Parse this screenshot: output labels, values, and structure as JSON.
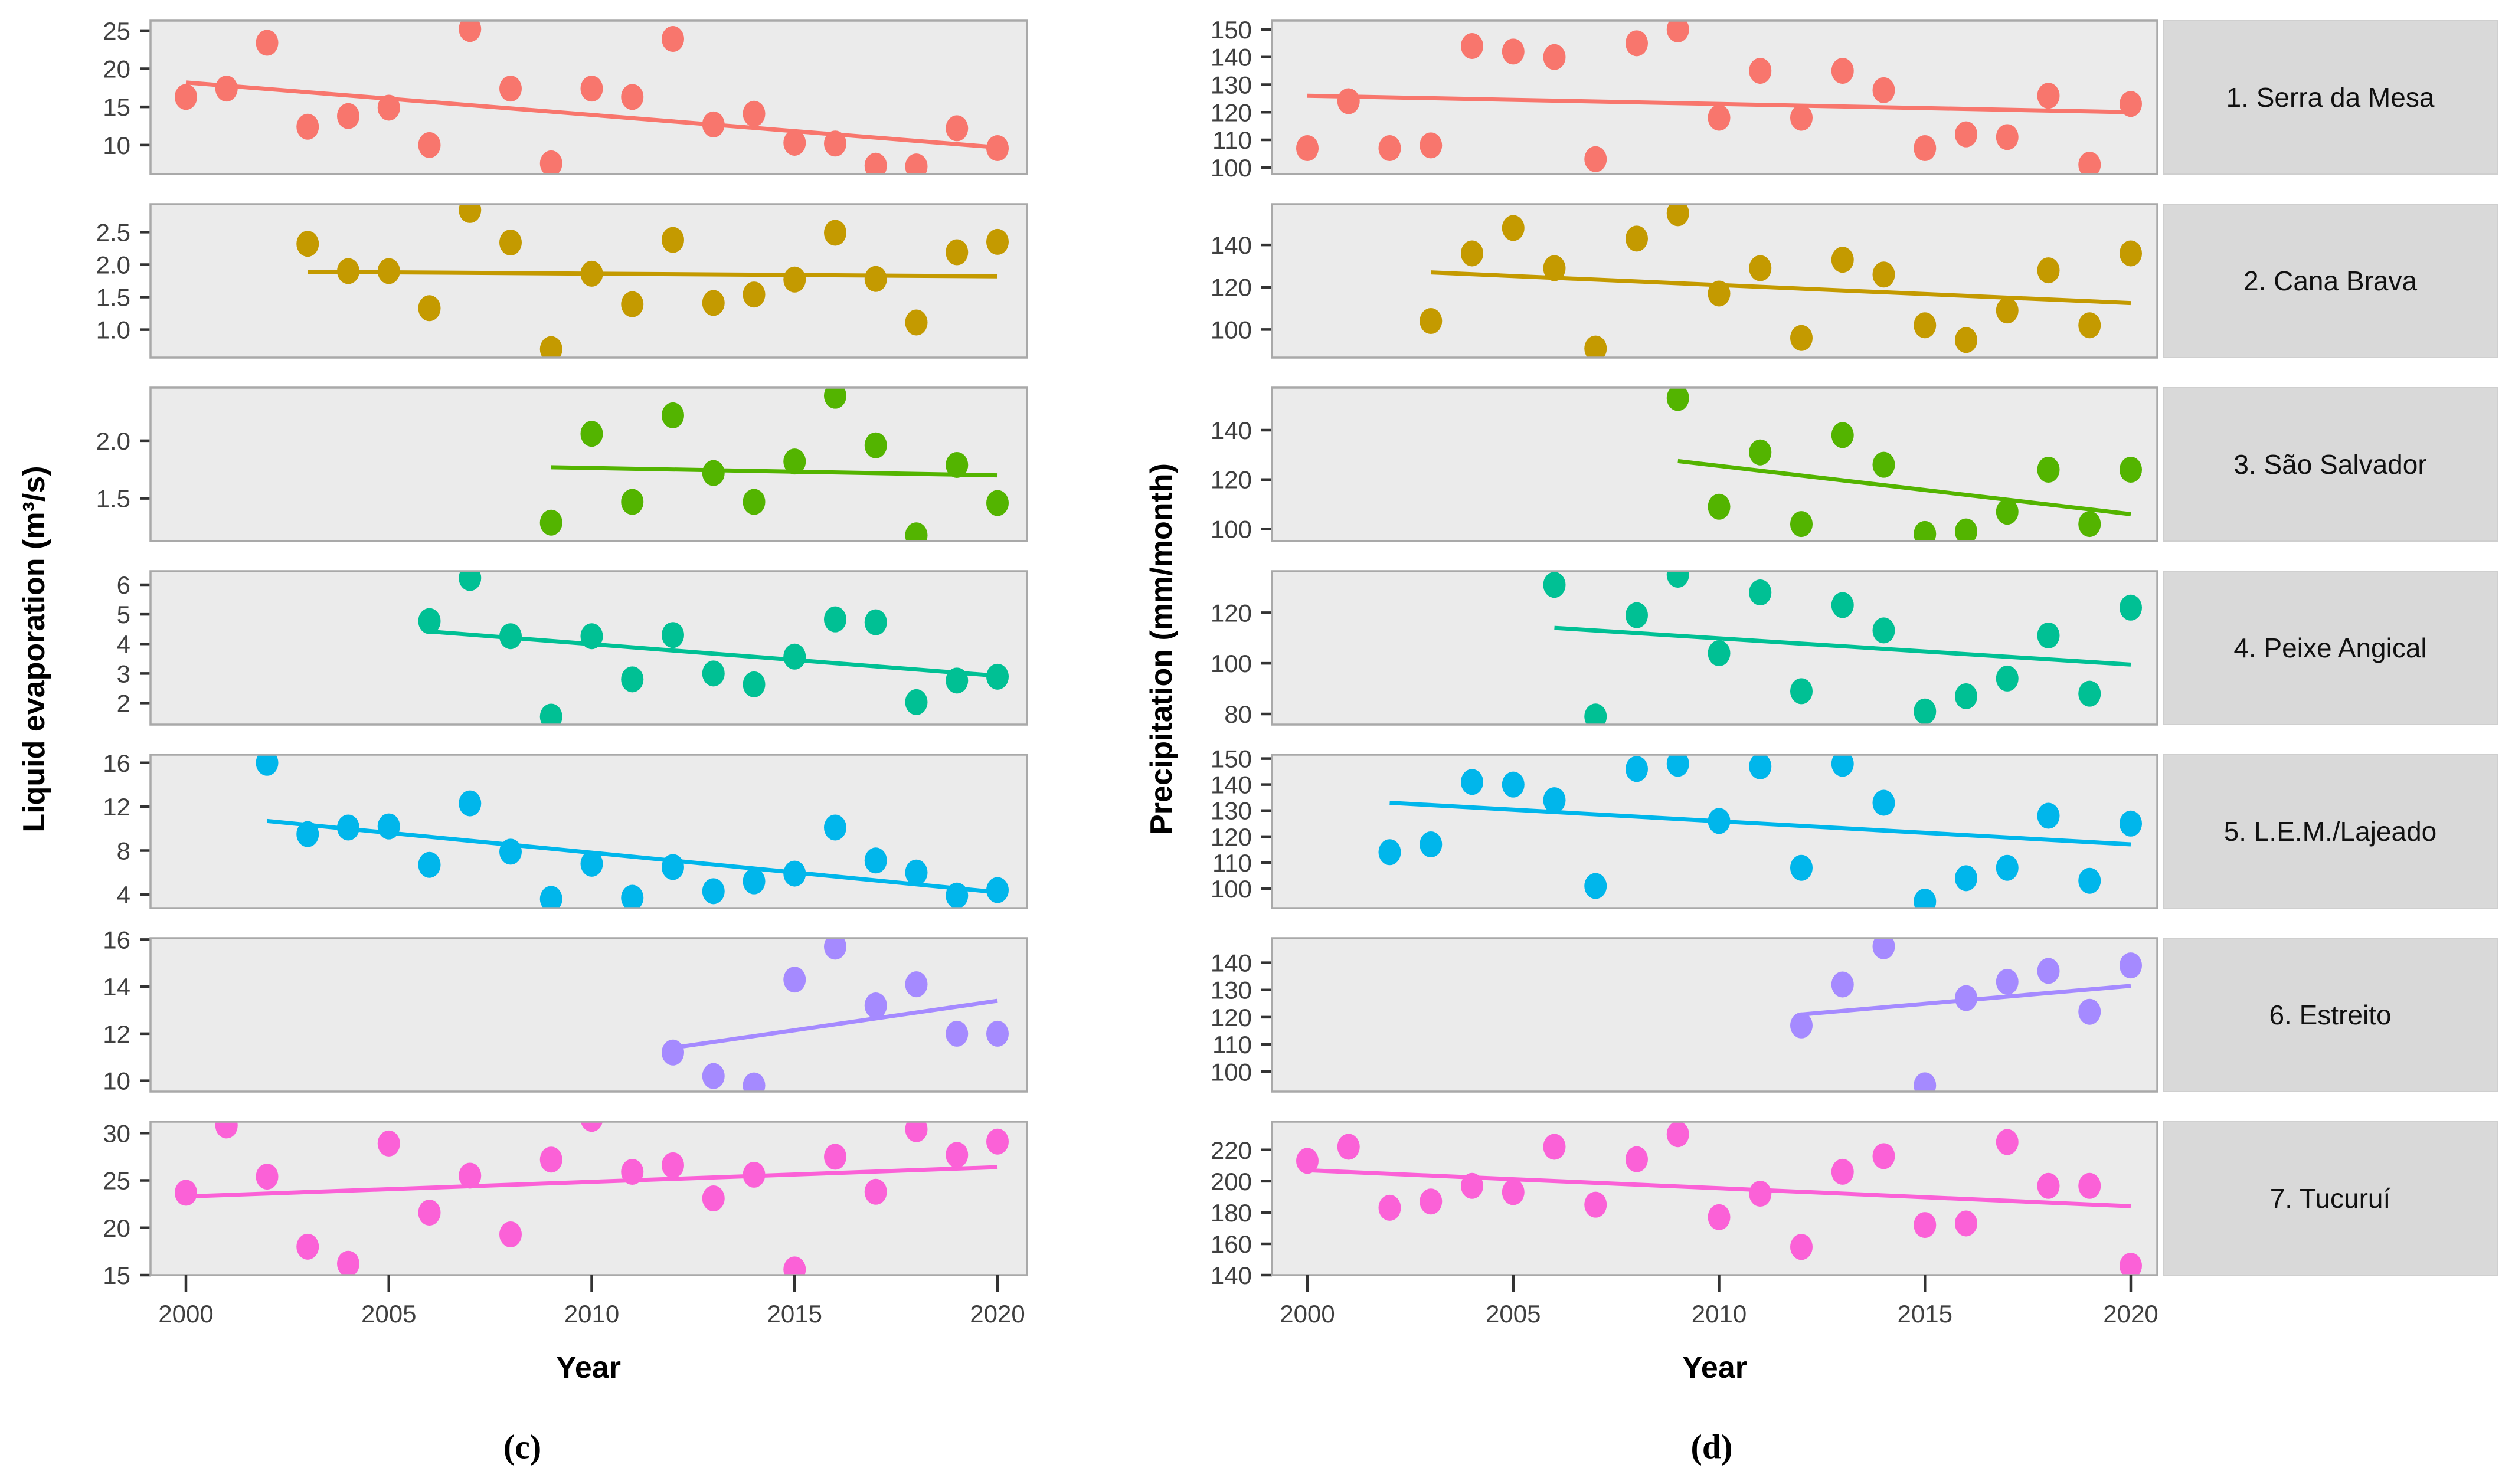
{
  "figure": {
    "caption_left": "(c)",
    "caption_right": "(d)",
    "x_tick_years": [
      "2000",
      "2005",
      "2010",
      "2015",
      "2020"
    ],
    "colors": {
      "panel_background": "#EBEBEB",
      "strip_background": "#D9D9D9",
      "axis_text": "#404040"
    }
  },
  "chart_data": [
    {
      "id": "c",
      "type": "scatter",
      "caption": "(c)",
      "xlabel": "Year",
      "ylabel": "Liquid evaporation (m³/s)",
      "xlim": [
        1999.1,
        2020.8
      ],
      "x_ticks": [
        2000,
        2005,
        2010,
        2015,
        2020
      ],
      "legend": "none",
      "grid": "off",
      "strip_labels_visible": false,
      "facets": [
        {
          "name": "1. Serra da Mesa",
          "color": "#F8766D",
          "ylim": [
            6.2,
            26.3
          ],
          "ytick_values": [
            10,
            15,
            20,
            25
          ],
          "ytick_labels": [
            "10",
            "15",
            "20",
            "25"
          ],
          "years": [
            2000,
            2001,
            2002,
            2003,
            2004,
            2005,
            2006,
            2007,
            2008,
            2009,
            2010,
            2011,
            2012,
            2013,
            2014,
            2015,
            2016,
            2017,
            2018,
            2019,
            2020
          ],
          "values": [
            16.3,
            17.4,
            23.4,
            12.4,
            13.8,
            14.9,
            10.0,
            25.2,
            17.4,
            7.6,
            17.4,
            16.3,
            23.9,
            12.7,
            14.1,
            10.3,
            10.2,
            7.3,
            7.2,
            12.2,
            9.6
          ],
          "trend": {
            "x": [
              2000,
              2020
            ],
            "y": [
              18.2,
              9.7
            ]
          }
        },
        {
          "name": "2. Cana Brava",
          "color": "#C49A00",
          "ylim": [
            0.57,
            2.93
          ],
          "ytick_values": [
            1.0,
            1.5,
            2.0,
            2.5
          ],
          "ytick_labels": [
            "1.0",
            "1.5",
            "2.0",
            "2.5"
          ],
          "years": [
            2003,
            2004,
            2005,
            2006,
            2007,
            2008,
            2009,
            2010,
            2011,
            2012,
            2013,
            2014,
            2015,
            2016,
            2017,
            2018,
            2019,
            2020
          ],
          "values": [
            2.32,
            1.9,
            1.9,
            1.33,
            2.84,
            2.34,
            0.7,
            1.86,
            1.39,
            2.38,
            1.41,
            1.54,
            1.77,
            2.49,
            1.78,
            1.11,
            2.19,
            2.35
          ],
          "trend": {
            "x": [
              2003,
              2020
            ],
            "y": [
              1.89,
              1.82
            ]
          }
        },
        {
          "name": "3. São Salvador",
          "color": "#53B400",
          "ylim": [
            1.13,
            2.46
          ],
          "ytick_values": [
            1.5,
            2.0
          ],
          "ytick_labels": [
            "1.5",
            "2.0"
          ],
          "years": [
            2009,
            2010,
            2011,
            2012,
            2013,
            2014,
            2015,
            2016,
            2017,
            2018,
            2019,
            2020
          ],
          "values": [
            1.29,
            2.06,
            1.47,
            2.22,
            1.72,
            1.47,
            1.82,
            2.39,
            1.96,
            1.18,
            1.79,
            1.46
          ],
          "trend": {
            "x": [
              2009,
              2020
            ],
            "y": [
              1.77,
              1.7
            ]
          }
        },
        {
          "name": "4. Peixe Angical",
          "color": "#00C094",
          "ylim": [
            1.27,
            6.46
          ],
          "ytick_values": [
            2,
            3,
            4,
            5,
            6
          ],
          "ytick_labels": [
            "2",
            "3",
            "4",
            "5",
            "6"
          ],
          "years": [
            2006,
            2007,
            2008,
            2009,
            2010,
            2011,
            2012,
            2013,
            2014,
            2015,
            2016,
            2017,
            2018,
            2019,
            2020
          ],
          "values": [
            4.77,
            6.23,
            4.26,
            1.54,
            4.26,
            2.8,
            4.3,
            3.0,
            2.63,
            3.57,
            4.83,
            4.73,
            2.03,
            2.76,
            2.89
          ],
          "trend": {
            "x": [
              2006,
              2020
            ],
            "y": [
              4.42,
              2.92
            ]
          }
        },
        {
          "name": "5. L.E.M./Lajeado",
          "color": "#00B6EB",
          "ylim": [
            2.76,
            16.74
          ],
          "ytick_values": [
            4,
            8,
            12,
            16
          ],
          "ytick_labels": [
            "4",
            "8",
            "12",
            "16"
          ],
          "years": [
            2002,
            2003,
            2004,
            2005,
            2006,
            2007,
            2008,
            2009,
            2010,
            2011,
            2012,
            2013,
            2014,
            2015,
            2016,
            2017,
            2018,
            2019,
            2020
          ],
          "values": [
            16.0,
            9.5,
            10.1,
            10.2,
            6.7,
            12.3,
            7.9,
            3.6,
            6.8,
            3.7,
            6.5,
            4.3,
            5.2,
            5.9,
            10.1,
            7.1,
            6.0,
            3.9,
            4.4
          ],
          "trend": {
            "x": [
              2002,
              2020
            ],
            "y": [
              10.7,
              4.2
            ]
          }
        },
        {
          "name": "6. Estreito",
          "color": "#A58AFF",
          "ylim": [
            9.54,
            16.06
          ],
          "ytick_values": [
            10,
            12,
            14,
            16
          ],
          "ytick_labels": [
            "10",
            "12",
            "14",
            "16"
          ],
          "years": [
            2012,
            2013,
            2014,
            2015,
            2016,
            2017,
            2018,
            2019,
            2020
          ],
          "values": [
            11.2,
            10.2,
            9.8,
            14.3,
            15.7,
            13.2,
            14.1,
            12.0,
            12.0
          ],
          "trend": {
            "x": [
              2012,
              2020
            ],
            "y": [
              11.4,
              13.4
            ]
          }
        },
        {
          "name": "7. Tucuruí",
          "color": "#FB61D7",
          "ylim": [
            15.0,
            31.2
          ],
          "ytick_values": [
            15,
            20,
            25,
            30
          ],
          "ytick_labels": [
            "15",
            "20",
            "25",
            "30"
          ],
          "years": [
            2000,
            2001,
            2002,
            2003,
            2004,
            2005,
            2006,
            2007,
            2008,
            2009,
            2010,
            2011,
            2012,
            2013,
            2014,
            2015,
            2016,
            2017,
            2018,
            2019,
            2020
          ],
          "values": [
            23.7,
            30.8,
            25.4,
            18.0,
            16.2,
            28.9,
            21.6,
            25.5,
            19.3,
            27.2,
            31.5,
            25.9,
            26.6,
            23.1,
            25.6,
            15.6,
            27.5,
            23.8,
            30.4,
            27.7,
            29.1
          ],
          "trend": {
            "x": [
              2000,
              2020
            ],
            "y": [
              23.3,
              26.4
            ]
          }
        }
      ]
    },
    {
      "id": "d",
      "type": "scatter",
      "caption": "(d)",
      "xlabel": "Year",
      "ylabel": "Precipitation (mm/month)",
      "xlim": [
        1999.1,
        2020.8
      ],
      "x_ticks": [
        2000,
        2005,
        2010,
        2015,
        2020
      ],
      "legend": "none",
      "grid": "off",
      "strip_labels_visible": true,
      "facets": [
        {
          "name": "1. Serra da Mesa",
          "color": "#F8766D",
          "ylim": [
            97.6,
            153.2
          ],
          "ytick_values": [
            100,
            110,
            120,
            130,
            140,
            150
          ],
          "ytick_labels": [
            "100",
            "110",
            "120",
            "130",
            "140",
            "150"
          ],
          "years": [
            2000,
            2001,
            2002,
            2003,
            2004,
            2005,
            2006,
            2007,
            2008,
            2009,
            2010,
            2011,
            2012,
            2013,
            2014,
            2015,
            2016,
            2017,
            2018,
            2019,
            2020
          ],
          "values": [
            107,
            124,
            107,
            108,
            144,
            142,
            140,
            103,
            145,
            150,
            118,
            135,
            118,
            135,
            128,
            107,
            112,
            111,
            126,
            101,
            123
          ],
          "trend": {
            "x": [
              2000,
              2020
            ],
            "y": [
              126,
              120
            ]
          }
        },
        {
          "name": "2. Cana Brava",
          "color": "#C49A00",
          "ylim": [
            86.7,
            159.3
          ],
          "ytick_values": [
            100,
            120,
            140
          ],
          "ytick_labels": [
            "100",
            "120",
            "140"
          ],
          "years": [
            2003,
            2004,
            2005,
            2006,
            2007,
            2008,
            2009,
            2010,
            2011,
            2012,
            2013,
            2014,
            2015,
            2016,
            2017,
            2018,
            2019,
            2020
          ],
          "values": [
            104,
            136,
            148,
            129,
            91,
            143,
            155,
            117,
            129,
            96,
            133,
            126,
            102,
            95,
            109,
            128,
            102,
            136
          ],
          "trend": {
            "x": [
              2003,
              2020
            ],
            "y": [
              127,
              112.5
            ]
          }
        },
        {
          "name": "3. São Salvador",
          "color": "#53B400",
          "ylim": [
            95.1,
            157.2
          ],
          "ytick_values": [
            100,
            120,
            140
          ],
          "ytick_labels": [
            "100",
            "120",
            "140"
          ],
          "years": [
            2009,
            2010,
            2011,
            2012,
            2013,
            2014,
            2015,
            2016,
            2017,
            2018,
            2019,
            2020
          ],
          "values": [
            153,
            109,
            131,
            102,
            138,
            126,
            98,
            99,
            107,
            124,
            102,
            124
          ],
          "trend": {
            "x": [
              2009,
              2020
            ],
            "y": [
              127.5,
              106
            ]
          }
        },
        {
          "name": "4. Peixe Angical",
          "color": "#00C094",
          "ylim": [
            75.8,
            136.4
          ],
          "ytick_values": [
            80,
            100,
            120
          ],
          "ytick_labels": [
            "80",
            "100",
            "120"
          ],
          "years": [
            2006,
            2007,
            2008,
            2009,
            2010,
            2011,
            2012,
            2013,
            2014,
            2015,
            2016,
            2017,
            2018,
            2019,
            2020
          ],
          "values": [
            131,
            79,
            119,
            135,
            104,
            128,
            89,
            123,
            113,
            81,
            87,
            94,
            111,
            88,
            122
          ],
          "trend": {
            "x": [
              2006,
              2020
            ],
            "y": [
              114,
              99.5
            ]
          }
        },
        {
          "name": "5. L.E.M./Lajeado",
          "color": "#00B6EB",
          "ylim": [
            92.5,
            151.5
          ],
          "ytick_values": [
            100,
            110,
            120,
            130,
            140,
            150
          ],
          "ytick_labels": [
            "100",
            "110",
            "120",
            "130",
            "140",
            "150"
          ],
          "years": [
            2002,
            2003,
            2004,
            2005,
            2006,
            2007,
            2008,
            2009,
            2010,
            2011,
            2012,
            2013,
            2014,
            2015,
            2016,
            2017,
            2018,
            2019,
            2020
          ],
          "values": [
            114,
            117,
            141,
            140,
            134,
            101,
            146,
            148,
            126,
            147,
            108,
            148,
            133,
            95,
            104,
            108,
            128,
            103,
            125
          ],
          "trend": {
            "x": [
              2002,
              2020
            ],
            "y": [
              133,
              117
            ]
          }
        },
        {
          "name": "6. Estreito",
          "color": "#A58AFF",
          "ylim": [
            92.7,
            149.0
          ],
          "ytick_values": [
            100,
            110,
            120,
            130,
            140
          ],
          "ytick_labels": [
            "100",
            "110",
            "120",
            "130",
            "140"
          ],
          "years": [
            2012,
            2013,
            2014,
            2015,
            2016,
            2017,
            2018,
            2019,
            2020
          ],
          "values": [
            117,
            132,
            146,
            95,
            127,
            133,
            137,
            122,
            139
          ],
          "trend": {
            "x": [
              2012,
              2020
            ],
            "y": [
              121,
              131.5
            ]
          }
        },
        {
          "name": "7. Tucuruí",
          "color": "#FB61D7",
          "ylim": [
            140,
            238
          ],
          "ytick_values": [
            140,
            160,
            180,
            200,
            220
          ],
          "ytick_labels": [
            "140",
            "160",
            "180",
            "200",
            "220"
          ],
          "years": [
            2000,
            2001,
            2002,
            2003,
            2004,
            2005,
            2006,
            2007,
            2008,
            2009,
            2010,
            2011,
            2012,
            2013,
            2014,
            2015,
            2016,
            2017,
            2018,
            2019,
            2020
          ],
          "values": [
            213,
            222,
            183,
            187,
            197,
            193,
            222,
            185,
            214,
            230,
            177,
            192,
            158,
            206,
            216,
            172,
            173,
            225,
            197,
            197,
            146
          ],
          "trend": {
            "x": [
              2000,
              2020
            ],
            "y": [
              207,
              184
            ]
          }
        }
      ]
    }
  ]
}
